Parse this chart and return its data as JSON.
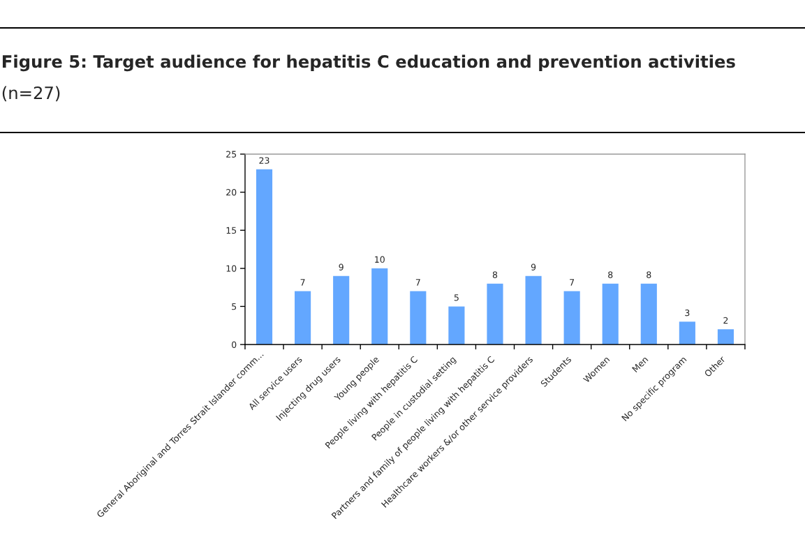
{
  "chart_data": {
    "type": "bar",
    "title": "Figure 5: Target audience for hepatitis C education and prevention activities",
    "subtitle": "(n=27)",
    "categories": [
      "General Aboriginal and Torres Strait Islander comm...",
      "All service users",
      "Injecting drug users",
      "Young people",
      "People living with hepatitis C",
      "People in custodial setting",
      "Partners and family of people living with hepatitis C",
      "Healthcare workers &/or other service providers",
      "Students",
      "Women",
      "Men",
      "No specific program",
      "Other"
    ],
    "values": [
      23,
      7,
      9,
      10,
      7,
      5,
      8,
      9,
      7,
      8,
      8,
      3,
      2
    ],
    "color": "#63a7ff",
    "ylim": [
      0,
      25
    ],
    "yticks": [
      0,
      5,
      10,
      15,
      20,
      25
    ],
    "grid": false,
    "data_labels": true
  }
}
